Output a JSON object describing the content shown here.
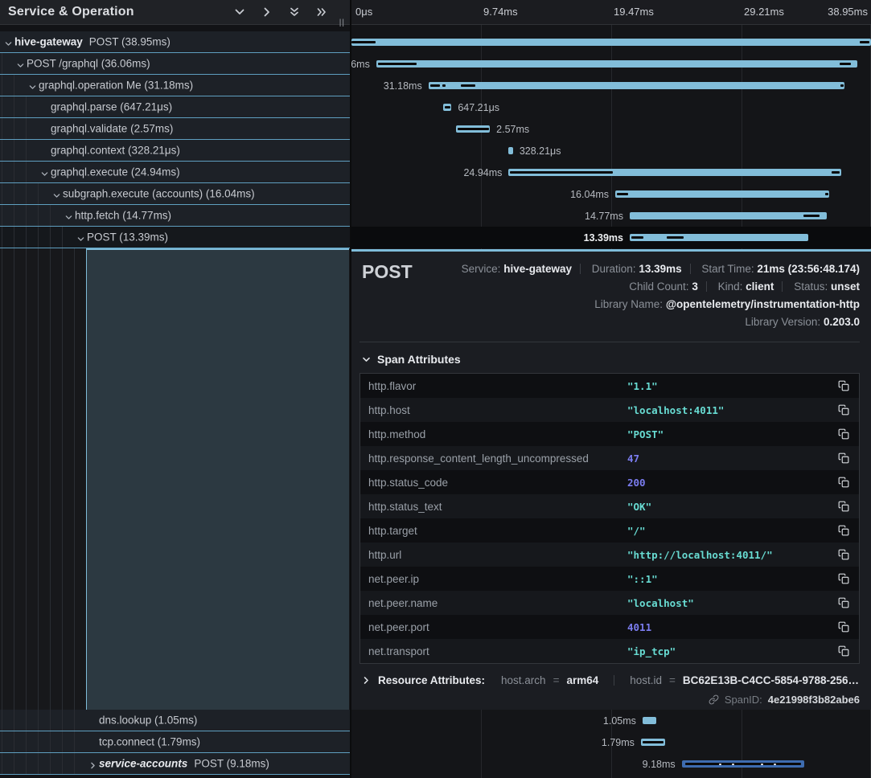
{
  "left_header": {
    "title": "Service & Operation",
    "resize_handle": "||",
    "icons": [
      "collapse-one-icon",
      "expand-one-icon",
      "collapse-all-icon",
      "expand-all-icon"
    ]
  },
  "timeline_header": {
    "ticks": [
      "0μs",
      "9.74ms",
      "19.47ms",
      "29.21ms",
      "38.95ms"
    ]
  },
  "total_ms": 38.95,
  "colors": {
    "bar": "#82bdd9",
    "bar_alt": "#3e6cb0",
    "accent": "#7fbcd9",
    "row_border": "#5f9fc0",
    "string_value": "#68dcd3",
    "number_value": "#7b7df0"
  },
  "rows": [
    {
      "service": "hive-gateway",
      "name": "POST (38.95ms)",
      "depth": 0,
      "chevron": "down",
      "start_ms": 0,
      "dur_ms": 38.95,
      "dur_label": "38.95ms",
      "label_side": "left",
      "selected": false,
      "color": "light",
      "marks": [
        [
          0,
          30
        ],
        [
          632,
          12
        ]
      ],
      "white_marks": [],
      "group": "top"
    },
    {
      "service": null,
      "name": "POST /graphql (36.06ms)",
      "depth": 1,
      "chevron": "down",
      "start_ms": 1.86,
      "dur_ms": 36.06,
      "dur_label": "36.06ms",
      "label_side": "left",
      "selected": false,
      "color": "light",
      "marks": [
        [
          2,
          48
        ],
        [
          576,
          14
        ]
      ],
      "white_marks": [],
      "group": "top"
    },
    {
      "service": null,
      "name": "graphql.operation Me (31.18ms)",
      "depth": 2,
      "chevron": "down",
      "start_ms": 5.77,
      "dur_ms": 31.18,
      "dur_label": "31.18ms",
      "label_side": "left",
      "selected": false,
      "color": "light",
      "marks": [
        [
          2,
          12
        ],
        [
          17,
          4
        ],
        [
          40,
          18
        ],
        [
          512,
          4
        ]
      ],
      "white_marks": [],
      "group": "top"
    },
    {
      "service": null,
      "name": "graphql.parse (647.21μs)",
      "depth": 3,
      "chevron": null,
      "start_ms": 6.85,
      "dur_ms": 0.64721,
      "dur_label": "647.21μs",
      "label_side": "right",
      "selected": false,
      "color": "light",
      "marks": [
        [
          2,
          7
        ]
      ],
      "white_marks": [],
      "group": "top"
    },
    {
      "service": null,
      "name": "graphql.validate (2.57ms)",
      "depth": 3,
      "chevron": null,
      "start_ms": 7.81,
      "dur_ms": 2.57,
      "dur_label": "2.57ms",
      "label_side": "right",
      "selected": false,
      "color": "light",
      "marks": [
        [
          2,
          39
        ]
      ],
      "white_marks": [],
      "group": "top"
    },
    {
      "service": null,
      "name": "graphql.context (328.21μs)",
      "depth": 3,
      "chevron": null,
      "start_ms": 11.78,
      "dur_ms": 0.32821,
      "dur_label": "328.21μs",
      "label_side": "right",
      "selected": false,
      "color": "light",
      "marks": [],
      "white_marks": [],
      "group": "top"
    },
    {
      "service": null,
      "name": "graphql.execute (24.94ms)",
      "depth": 3,
      "chevron": "down",
      "start_ms": 11.78,
      "dur_ms": 24.94,
      "dur_label": "24.94ms",
      "label_side": "left",
      "selected": false,
      "color": "light",
      "marks": [
        [
          2,
          128
        ],
        [
          402,
          10
        ]
      ],
      "white_marks": [],
      "group": "top"
    },
    {
      "service": null,
      "name": "subgraph.execute (accounts) (16.04ms)",
      "depth": 4,
      "chevron": "down",
      "start_ms": 19.78,
      "dur_ms": 16.04,
      "dur_label": "16.04ms",
      "label_side": "left",
      "selected": false,
      "color": "light",
      "marks": [
        [
          2,
          14
        ],
        [
          261,
          4
        ]
      ],
      "white_marks": [],
      "group": "top"
    },
    {
      "service": null,
      "name": "http.fetch (14.77ms)",
      "depth": 5,
      "chevron": "down",
      "start_ms": 20.86,
      "dur_ms": 14.77,
      "dur_label": "14.77ms",
      "label_side": "left",
      "selected": false,
      "color": "light",
      "marks": [
        [
          216,
          20
        ]
      ],
      "white_marks": [],
      "group": "top"
    },
    {
      "service": null,
      "name": "POST (13.39ms)",
      "depth": 6,
      "chevron": "down",
      "start_ms": 20.86,
      "dur_ms": 13.39,
      "dur_label": "13.39ms",
      "label_side": "left",
      "selected": true,
      "color": "light",
      "marks": [
        [
          2,
          15
        ],
        [
          46,
          21
        ]
      ],
      "white_marks": [],
      "group": "top"
    },
    {
      "service": null,
      "name": "dns.lookup (1.05ms)",
      "depth": 7,
      "chevron": null,
      "start_ms": 21.82,
      "dur_ms": 1.05,
      "dur_label": "1.05ms",
      "label_side": "left",
      "selected": false,
      "color": "light",
      "marks": [],
      "white_marks": [],
      "group": "bottom"
    },
    {
      "service": null,
      "name": "tcp.connect (1.79ms)",
      "depth": 7,
      "chevron": null,
      "start_ms": 21.7,
      "dur_ms": 1.79,
      "dur_label": "1.79ms",
      "label_side": "left",
      "selected": false,
      "color": "light",
      "marks": [
        [
          2,
          26
        ]
      ],
      "white_marks": [],
      "group": "bottom"
    },
    {
      "service": "service-accounts",
      "service_italic": true,
      "name": "POST (9.18ms)",
      "depth": 7,
      "chevron": "right",
      "start_ms": 24.76,
      "dur_ms": 9.18,
      "dur_label": "9.18ms",
      "label_side": "left",
      "selected": false,
      "color": "alt",
      "marks": [
        [
          4,
          144
        ]
      ],
      "white_marks": [
        [
          46,
          3
        ],
        [
          62,
          3
        ],
        [
          98,
          3
        ],
        [
          114,
          3
        ]
      ],
      "group": "bottom"
    }
  ],
  "detail": {
    "title": "POST",
    "meta_line1": [
      {
        "label": "Service:",
        "value": "hive-gateway"
      },
      {
        "label": "Duration:",
        "value": "13.39ms"
      },
      {
        "label": "Start Time:",
        "value": "21ms (23:56:48.174)"
      }
    ],
    "meta_line2": [
      {
        "label": "Child Count:",
        "value": "3"
      },
      {
        "label": "Kind:",
        "value": "client"
      },
      {
        "label": "Status:",
        "value": "unset"
      }
    ],
    "meta_line3": [
      {
        "label": "Library Name:",
        "value": "@opentelemetry/instrumentation-http"
      }
    ],
    "meta_line4": [
      {
        "label": "Library Version:",
        "value": "0.203.0"
      }
    ],
    "span_attributes": {
      "section_title": "Span Attributes",
      "rows": [
        {
          "key": "http.flavor",
          "value": "\"1.1\"",
          "type": "string"
        },
        {
          "key": "http.host",
          "value": "\"localhost:4011\"",
          "type": "string"
        },
        {
          "key": "http.method",
          "value": "\"POST\"",
          "type": "string"
        },
        {
          "key": "http.response_content_length_uncompressed",
          "value": "47",
          "type": "number"
        },
        {
          "key": "http.status_code",
          "value": "200",
          "type": "number"
        },
        {
          "key": "http.status_text",
          "value": "\"OK\"",
          "type": "string"
        },
        {
          "key": "http.target",
          "value": "\"/\"",
          "type": "string"
        },
        {
          "key": "http.url",
          "value": "\"http://localhost:4011/\"",
          "type": "string"
        },
        {
          "key": "net.peer.ip",
          "value": "\"::1\"",
          "type": "string"
        },
        {
          "key": "net.peer.name",
          "value": "\"localhost\"",
          "type": "string"
        },
        {
          "key": "net.peer.port",
          "value": "4011",
          "type": "number"
        },
        {
          "key": "net.transport",
          "value": "\"ip_tcp\"",
          "type": "string"
        }
      ]
    },
    "resource_attributes": {
      "section_title": "Resource Attributes:",
      "equals": "=",
      "pairs": [
        {
          "key": "host.arch",
          "value": "arm64"
        },
        {
          "key": "host.id",
          "value": "BC62E13B-C4CC-5854-9788-256…"
        }
      ]
    },
    "span_id": {
      "label": "SpanID:",
      "value": "4e21998f3b82abe6"
    }
  }
}
